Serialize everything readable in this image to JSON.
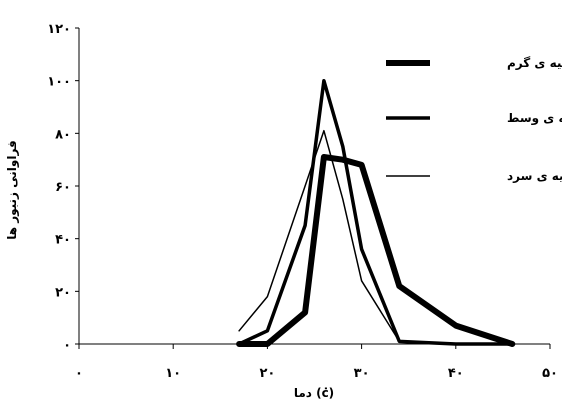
{
  "chart_data": {
    "type": "line",
    "xlabel": "دما (ċ)",
    "ylabel": "فراوانی زنبور ها",
    "xlim": [
      0,
      50
    ],
    "ylim": [
      0,
      120
    ],
    "x_ticks": [
      {
        "value": 0,
        "label": "۰"
      },
      {
        "value": 10,
        "label": "۱۰"
      },
      {
        "value": 20,
        "label": "۲۰"
      },
      {
        "value": 30,
        "label": "۳۰"
      },
      {
        "value": 40,
        "label": "۴۰"
      },
      {
        "value": 50,
        "label": "۵۰"
      }
    ],
    "y_ticks": [
      {
        "value": 0,
        "label": "۰"
      },
      {
        "value": 20,
        "label": "۲۰"
      },
      {
        "value": 40,
        "label": "۴۰"
      },
      {
        "value": 60,
        "label": "۶۰"
      },
      {
        "value": 80,
        "label": "۸۰"
      },
      {
        "value": 100,
        "label": "۱۰۰"
      },
      {
        "value": 120,
        "label": "۱۲۰"
      }
    ],
    "grid": false,
    "legend_position": "right",
    "series": [
      {
        "name": "ناحیه ی گرم",
        "color": "#000000",
        "x": [
          17,
          20,
          24,
          26,
          28,
          30,
          34,
          40,
          46
        ],
        "y": [
          0,
          0,
          12,
          71,
          70,
          68,
          22,
          7,
          0
        ]
      },
      {
        "name": "ناحیه ی وسط",
        "color": "#000000",
        "x": [
          17,
          20,
          24,
          26,
          28,
          30,
          34,
          40,
          46
        ],
        "y": [
          0,
          5,
          45,
          100,
          75,
          36,
          1,
          0,
          0
        ]
      },
      {
        "name": "ناحیه ی سرد",
        "color": "#000000",
        "x": [
          17,
          20,
          24,
          26,
          28,
          30,
          34,
          40,
          46
        ],
        "y": [
          5,
          18,
          60,
          81,
          55,
          24,
          1,
          0,
          0
        ]
      }
    ]
  }
}
